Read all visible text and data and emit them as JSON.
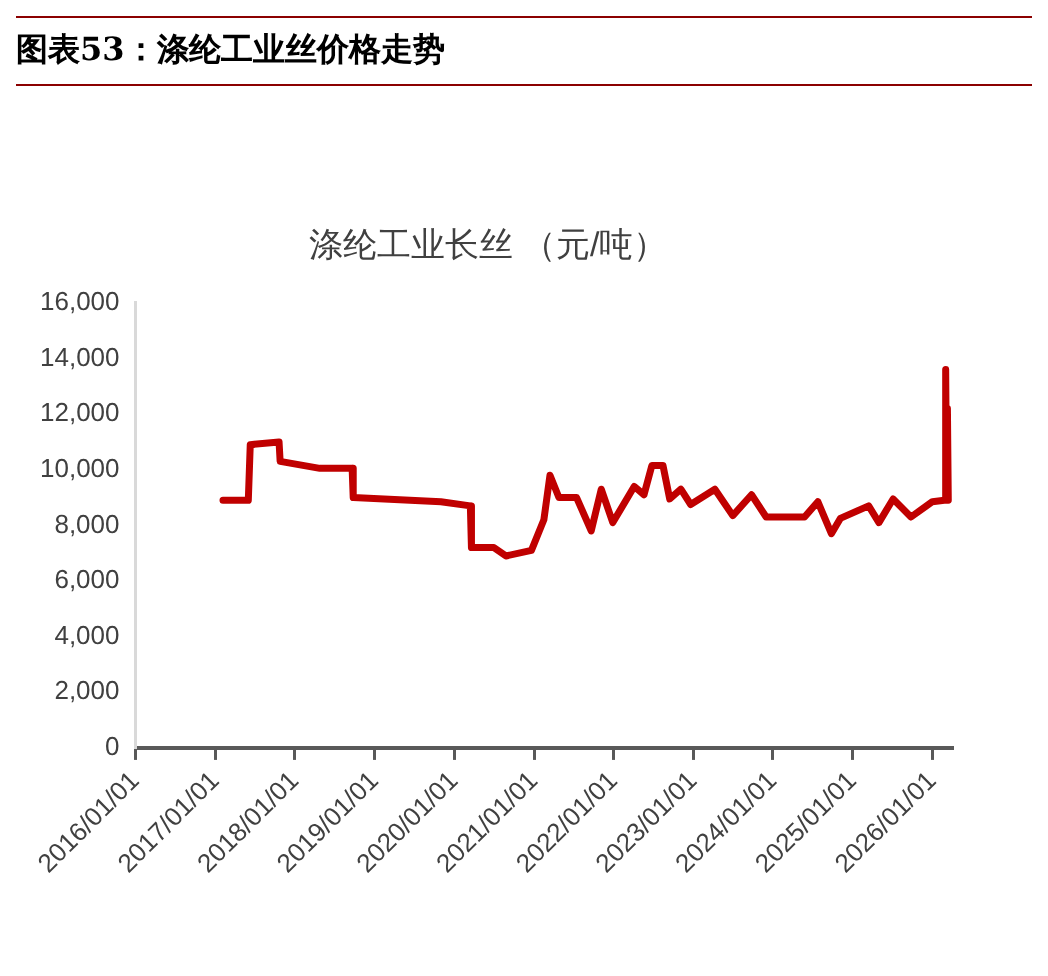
{
  "chart_data": {
    "type": "line",
    "title": "图表53：涤纶工业丝价格走势",
    "subtitle": "涤纶工业长丝 （元/吨）",
    "x": [
      "2017-02-05",
      "2017-06-01",
      "2017-06-10",
      "2017-10-20",
      "2017-10-25",
      "2018-04-25",
      "2018-09-20",
      "2018-09-25",
      "2019-11-01",
      "2020-03-15",
      "2020-03-20",
      "2020-07-01",
      "2020-08-25",
      "2020-12-20",
      "2021-02-15",
      "2021-03-15",
      "2021-04-25",
      "2021-07-15",
      "2021-09-20",
      "2021-11-05",
      "2021-12-28",
      "2022-04-05",
      "2022-05-20",
      "2022-06-25",
      "2022-08-15",
      "2022-09-15",
      "2022-11-05",
      "2022-12-20",
      "2023-04-10",
      "2023-07-01",
      "2023-09-25",
      "2023-12-01",
      "2024-05-25",
      "2024-07-25",
      "2024-09-25",
      "2024-11-05",
      "2025-03-15",
      "2025-05-01",
      "2025-07-05",
      "2025-09-25",
      "2026-01-01",
      "2026-02-25",
      "2026-03-03",
      "2026-03-07",
      "2026-03-11",
      "2026-03-15"
    ],
    "values": [
      8900,
      8900,
      10900,
      11000,
      10300,
      10050,
      10050,
      9000,
      8850,
      8700,
      7200,
      7200,
      6900,
      7100,
      8200,
      9800,
      9000,
      9000,
      7800,
      9300,
      8100,
      9400,
      9100,
      10150,
      10150,
      8950,
      9300,
      8750,
      9300,
      8350,
      9100,
      8300,
      8300,
      8850,
      7700,
      8250,
      8700,
      8100,
      8950,
      8300,
      8850,
      8900,
      13600,
      9200,
      12200,
      8900
    ],
    "color": "#c00000",
    "xlim": [
      "2016-01-01",
      "2026-04-01"
    ],
    "xticks": [
      {
        "value": "2016-01-01",
        "label": "2016/01/01"
      },
      {
        "value": "2017-01-01",
        "label": "2017/01/01"
      },
      {
        "value": "2018-01-01",
        "label": "2018/01/01"
      },
      {
        "value": "2019-01-01",
        "label": "2019/01/01"
      },
      {
        "value": "2020-01-01",
        "label": "2020/01/01"
      },
      {
        "value": "2021-01-01",
        "label": "2021/01/01"
      },
      {
        "value": "2022-01-01",
        "label": "2022/01/01"
      },
      {
        "value": "2023-01-01",
        "label": "2023/01/01"
      },
      {
        "value": "2024-01-01",
        "label": "2024/01/01"
      },
      {
        "value": "2025-01-01",
        "label": "2025/01/01"
      },
      {
        "value": "2026-01-01",
        "label": "2026/01/01"
      }
    ],
    "ylim": [
      0,
      16000
    ],
    "yticks": [
      0,
      {
        "value": 2000,
        "label": "2,000"
      },
      {
        "value": 4000,
        "label": "4,000"
      },
      {
        "value": 6000,
        "label": "6,000"
      },
      {
        "value": 8000,
        "label": "8,000"
      },
      {
        "value": 10000,
        "label": "10,000"
      },
      {
        "value": 12000,
        "label": "12,000"
      },
      {
        "value": 14000,
        "label": "14,000"
      },
      {
        "value": 16000,
        "label": "16,000"
      }
    ],
    "grid": false,
    "legend": false,
    "marker": "none",
    "line_style": "solid"
  }
}
